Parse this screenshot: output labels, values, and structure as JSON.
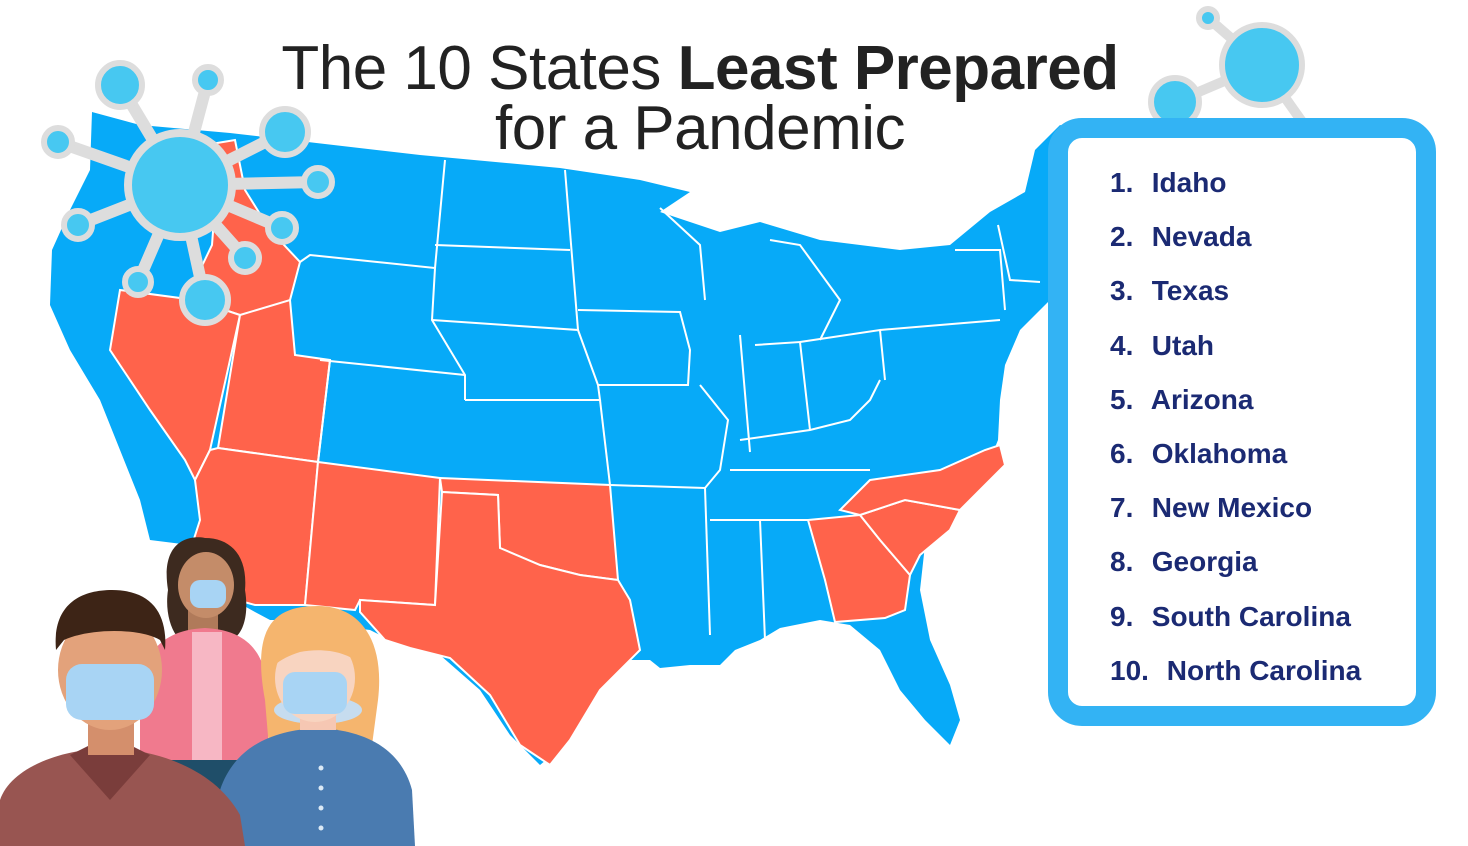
{
  "title": {
    "line1_light": "The 10 States ",
    "line1_bold": "Least Prepared",
    "line2": "for a Pandemic"
  },
  "ranking": [
    {
      "rank": "1.",
      "state": "Idaho"
    },
    {
      "rank": "2.",
      "state": "Nevada"
    },
    {
      "rank": "3.",
      "state": "Texas"
    },
    {
      "rank": "4.",
      "state": "Utah"
    },
    {
      "rank": "5.",
      "state": "Arizona"
    },
    {
      "rank": "6.",
      "state": "Oklahoma"
    },
    {
      "rank": "7.",
      "state": "New Mexico"
    },
    {
      "rank": "8.",
      "state": "Georgia"
    },
    {
      "rank": "9.",
      "state": "South Carolina"
    },
    {
      "rank": "10.",
      "state": "North Carolina"
    }
  ],
  "colors": {
    "highlighted_state": "#ff634b",
    "other_state": "#07aaf8",
    "state_border": "#ffffff",
    "panel_border": "#33b3f4",
    "list_text": "#1b2a73",
    "title_text": "#222222",
    "virus": "#47c8f1",
    "virus_ring": "#dddddd"
  },
  "icons": [
    "virus-icon",
    "molecule-icon",
    "masked-people-illustration"
  ]
}
